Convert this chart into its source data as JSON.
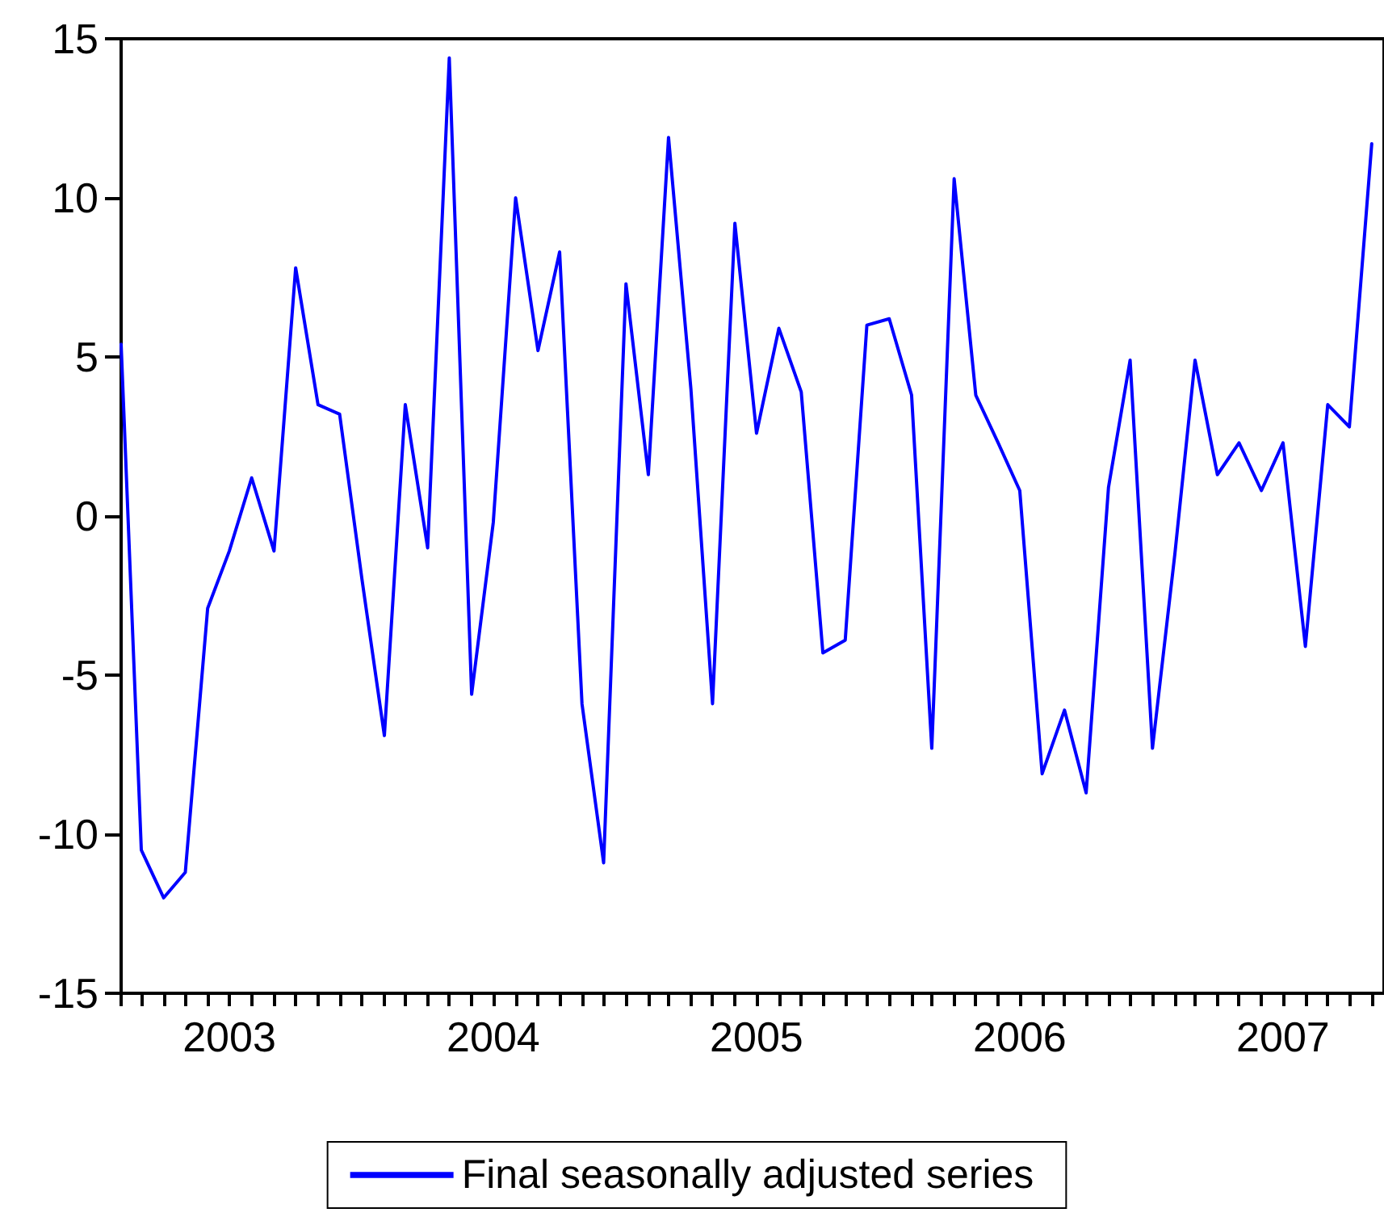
{
  "chart_data": {
    "type": "line",
    "x": [
      "2003-02",
      "2003-03",
      "2003-04",
      "2003-05",
      "2003-06",
      "2003-07",
      "2003-08",
      "2003-09",
      "2003-10",
      "2003-11",
      "2003-12",
      "2004-01",
      "2004-02",
      "2004-03",
      "2004-04",
      "2004-05",
      "2004-06",
      "2004-07",
      "2004-08",
      "2004-09",
      "2004-10",
      "2004-11",
      "2004-12",
      "2005-01",
      "2005-02",
      "2005-03",
      "2005-04",
      "2005-05",
      "2005-06",
      "2005-07",
      "2005-08",
      "2005-09",
      "2005-10",
      "2005-11",
      "2005-12",
      "2006-01",
      "2006-02",
      "2006-03",
      "2006-04",
      "2006-05",
      "2006-06",
      "2006-07",
      "2006-08",
      "2006-09",
      "2006-10",
      "2006-11",
      "2006-12",
      "2007-01",
      "2007-02",
      "2007-03",
      "2007-04",
      "2007-05",
      "2007-06",
      "2007-07",
      "2007-08",
      "2007-09",
      "2007-10",
      "2007-11"
    ],
    "series": [
      {
        "name": "Final seasonally adjusted series",
        "color": "#0000ff",
        "values": [
          5.4,
          -10.5,
          -12.0,
          -11.2,
          -2.9,
          -1.1,
          1.2,
          -1.1,
          7.8,
          3.5,
          3.2,
          -2.0,
          -6.9,
          3.5,
          -1.0,
          14.4,
          -5.6,
          -0.2,
          10.0,
          5.2,
          8.3,
          -5.9,
          -10.9,
          7.3,
          1.3,
          11.9,
          4.0,
          -5.9,
          9.2,
          2.6,
          5.9,
          3.9,
          -4.3,
          -3.9,
          6.0,
          6.2,
          3.8,
          -7.3,
          10.6,
          3.8,
          2.3,
          0.8,
          -8.1,
          -6.1,
          -8.7,
          0.9,
          4.9,
          -7.3,
          -1.2,
          4.9,
          1.3,
          2.3,
          0.8,
          2.3,
          -4.1,
          3.5,
          2.8,
          11.7
        ]
      }
    ],
    "xlim": [
      "2003-02",
      "2007-11-18"
    ],
    "xticks": [
      {
        "value": "2003-02",
        "label": null
      },
      {
        "value": "2003-03",
        "label": null
      },
      {
        "value": "2003-04",
        "label": null
      },
      {
        "value": "2003-05",
        "label": null
      },
      {
        "value": "2003-06",
        "label": null
      },
      {
        "value": "2003-07",
        "label": "2003"
      },
      {
        "value": "2003-08",
        "label": null
      },
      {
        "value": "2003-09",
        "label": null
      },
      {
        "value": "2003-10",
        "label": null
      },
      {
        "value": "2003-11",
        "label": null
      },
      {
        "value": "2003-12",
        "label": null
      },
      {
        "value": "2004-01",
        "label": null
      },
      {
        "value": "2004-02",
        "label": null
      },
      {
        "value": "2004-03",
        "label": null
      },
      {
        "value": "2004-04",
        "label": null
      },
      {
        "value": "2004-05",
        "label": null
      },
      {
        "value": "2004-06",
        "label": null
      },
      {
        "value": "2004-07",
        "label": "2004"
      },
      {
        "value": "2004-08",
        "label": null
      },
      {
        "value": "2004-09",
        "label": null
      },
      {
        "value": "2004-10",
        "label": null
      },
      {
        "value": "2004-11",
        "label": null
      },
      {
        "value": "2004-12",
        "label": null
      },
      {
        "value": "2005-01",
        "label": null
      },
      {
        "value": "2005-02",
        "label": null
      },
      {
        "value": "2005-03",
        "label": null
      },
      {
        "value": "2005-04",
        "label": null
      },
      {
        "value": "2005-05",
        "label": null
      },
      {
        "value": "2005-06",
        "label": null
      },
      {
        "value": "2005-07",
        "label": "2005"
      },
      {
        "value": "2005-08",
        "label": null
      },
      {
        "value": "2005-09",
        "label": null
      },
      {
        "value": "2005-10",
        "label": null
      },
      {
        "value": "2005-11",
        "label": null
      },
      {
        "value": "2005-12",
        "label": null
      },
      {
        "value": "2006-01",
        "label": null
      },
      {
        "value": "2006-02",
        "label": null
      },
      {
        "value": "2006-03",
        "label": null
      },
      {
        "value": "2006-04",
        "label": null
      },
      {
        "value": "2006-05",
        "label": null
      },
      {
        "value": "2006-06",
        "label": null
      },
      {
        "value": "2006-07",
        "label": "2006"
      },
      {
        "value": "2006-08",
        "label": null
      },
      {
        "value": "2006-09",
        "label": null
      },
      {
        "value": "2006-10",
        "label": null
      },
      {
        "value": "2006-11",
        "label": null
      },
      {
        "value": "2006-12",
        "label": null
      },
      {
        "value": "2007-01",
        "label": null
      },
      {
        "value": "2007-02",
        "label": null
      },
      {
        "value": "2007-03",
        "label": null
      },
      {
        "value": "2007-04",
        "label": null
      },
      {
        "value": "2007-05",
        "label": null
      },
      {
        "value": "2007-06",
        "label": null
      },
      {
        "value": "2007-07",
        "label": "2007"
      },
      {
        "value": "2007-08",
        "label": null
      },
      {
        "value": "2007-09",
        "label": null
      },
      {
        "value": "2007-10",
        "label": null
      },
      {
        "value": "2007-11",
        "label": null
      }
    ],
    "ylim": [
      -15,
      15
    ],
    "yticks": [
      -15,
      -10,
      -5,
      0,
      5,
      10,
      15
    ],
    "grid": false,
    "legend": "bottom",
    "marker": "none",
    "line_style": "solid"
  }
}
